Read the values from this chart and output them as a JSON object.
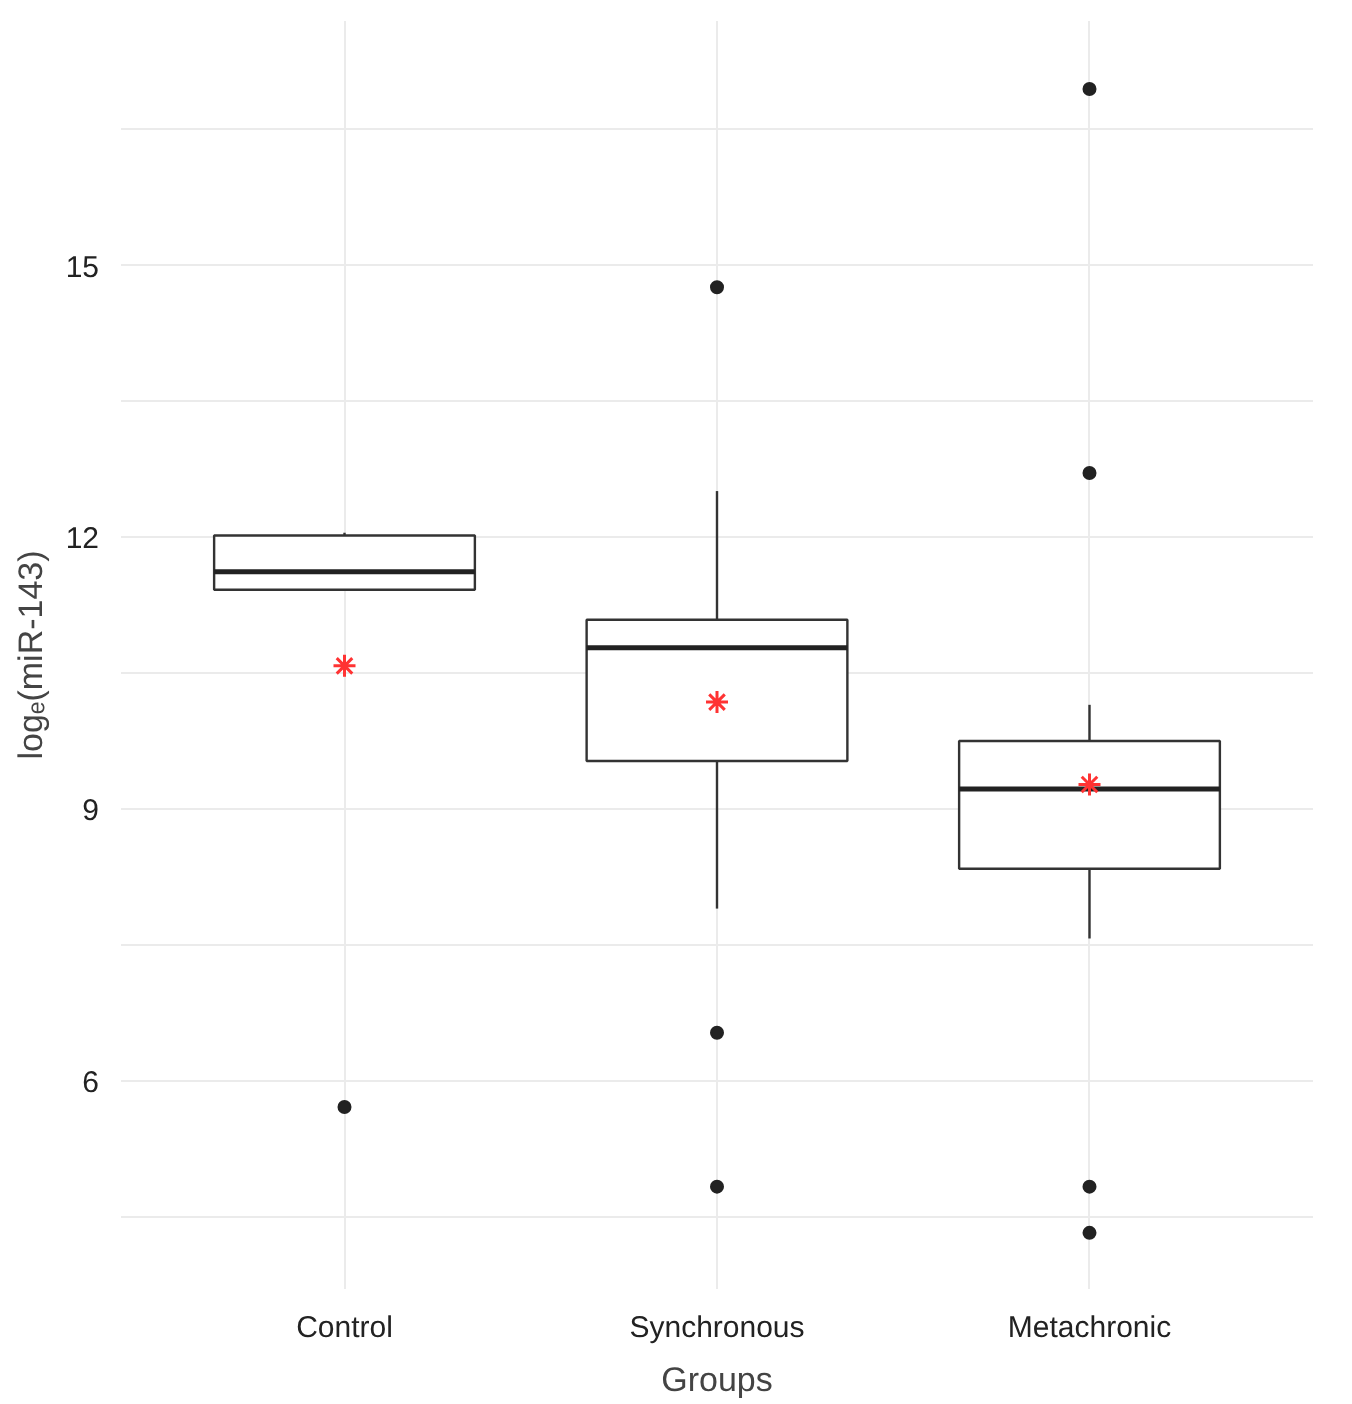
{
  "chart_data": {
    "type": "box",
    "xlabel": "Groups",
    "ylabel": "logₑ(miR-143)",
    "categories": [
      "Control",
      "Synchronous",
      "Metachronic"
    ],
    "boxes": [
      {
        "low": 11.42,
        "q1": 11.42,
        "median": 11.62,
        "q3": 12.02,
        "high": 12.05,
        "mean": 10.58,
        "outliers": [
          5.71
        ]
      },
      {
        "low": 7.9,
        "q1": 9.53,
        "median": 10.78,
        "q3": 11.09,
        "high": 12.51,
        "mean": 10.18,
        "outliers": [
          14.76,
          6.53,
          4.83
        ]
      },
      {
        "low": 7.57,
        "q1": 8.34,
        "median": 9.22,
        "q3": 9.75,
        "high": 10.15,
        "mean": 9.27,
        "outliers": [
          16.95,
          12.71,
          4.83,
          4.32
        ]
      }
    ],
    "ylim": [
      3.7,
      17.7
    ],
    "yticks": [
      6,
      9,
      12,
      15
    ],
    "grid": true
  }
}
